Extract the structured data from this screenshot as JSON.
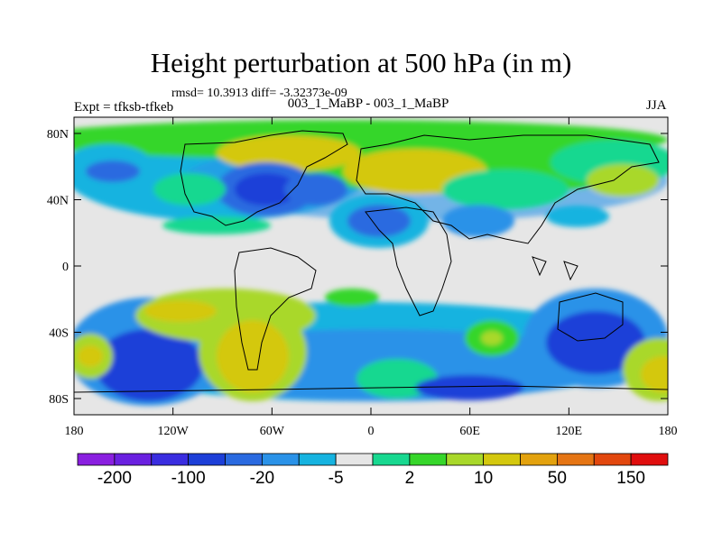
{
  "title": "Height perturbation at 500 hPa (in m)",
  "stats": "rmsd= 10.3913 diff= -3.32373e-09",
  "expt": "Expt = tfksb-tfkeb",
  "center_label": "003_1_MaBP - 003_1_MaBP",
  "season": "JJA",
  "x_ticks": [
    "180",
    "120W",
    "60W",
    "0",
    "60E",
    "120E",
    "180"
  ],
  "y_ticks": [
    "80N",
    "40N",
    "0",
    "40S",
    "80S"
  ],
  "colorbar": {
    "colors": [
      "#8a1fe0",
      "#6a20e0",
      "#3a2de0",
      "#1d3fd8",
      "#2a6ae0",
      "#2a92e8",
      "#16b3e0",
      "#e6e6e6",
      "#18d890",
      "#36d62a",
      "#a9d82a",
      "#d4c80e",
      "#e3a20e",
      "#e57514",
      "#e2470e",
      "#e00e0e"
    ],
    "labels": [
      "-200",
      "-100",
      "-20",
      "-5",
      "2",
      "10",
      "50",
      "150"
    ]
  },
  "colors": {
    "ocean_bg": "#e6e6e6",
    "coast": "#000000"
  }
}
